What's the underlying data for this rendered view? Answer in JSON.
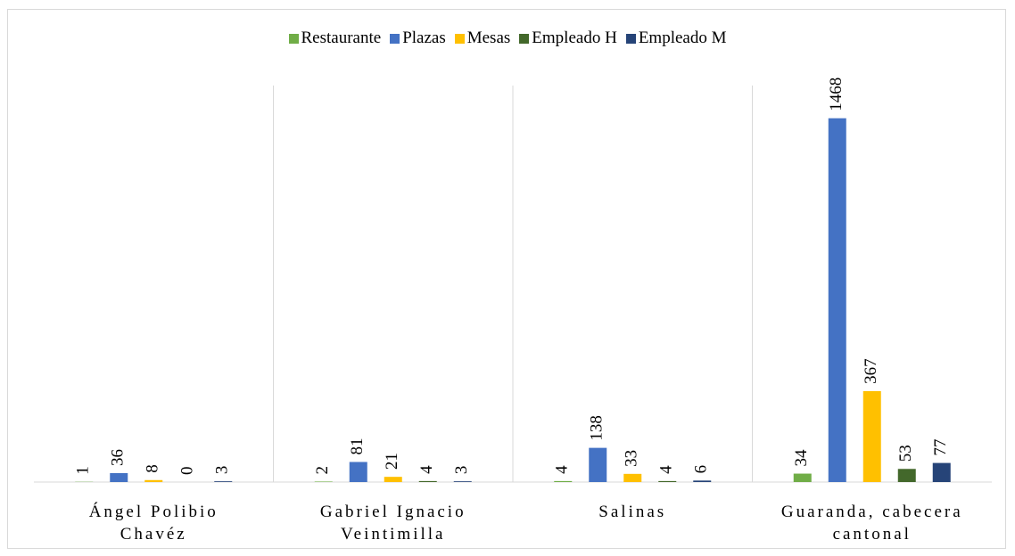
{
  "chart_data": {
    "type": "bar",
    "categories": [
      "Ángel Polibio Chavéz",
      "Gabriel Ignacio Veintimilla",
      "Salinas",
      "Guaranda, cabecera cantonal"
    ],
    "series": [
      {
        "name": "Restaurante",
        "color": "#70ad47",
        "values": [
          1,
          2,
          4,
          34
        ]
      },
      {
        "name": "Plazas",
        "color": "#4472c4",
        "values": [
          36,
          81,
          138,
          1468
        ]
      },
      {
        "name": "Mesas",
        "color": "#ffc000",
        "values": [
          8,
          21,
          33,
          367
        ]
      },
      {
        "name": "Empleado H",
        "color": "#43682b",
        "values": [
          0,
          4,
          4,
          53
        ]
      },
      {
        "name": "Empleado M",
        "color": "#264478",
        "values": [
          3,
          3,
          6,
          77
        ]
      }
    ],
    "ylim": [
      0,
      1600
    ],
    "legend": "top",
    "grid": false
  }
}
